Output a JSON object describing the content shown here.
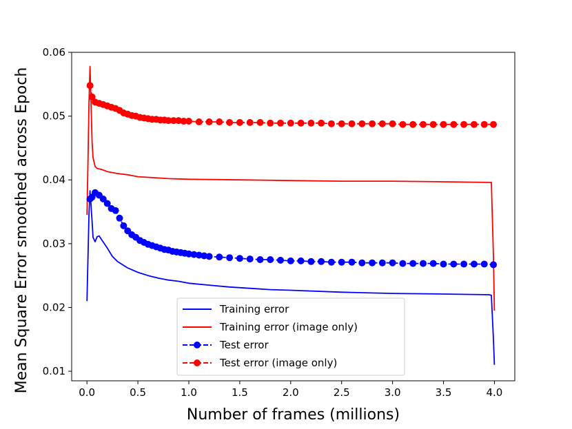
{
  "chart_data": {
    "type": "line",
    "xlabel": "Number of frames (millions)",
    "ylabel": "Mean Square Error smoothed across Epoch",
    "xlim": [
      -0.15,
      4.2
    ],
    "ylim": [
      0.0085,
      0.06
    ],
    "xticks": [
      0.0,
      0.5,
      1.0,
      1.5,
      2.0,
      2.5,
      3.0,
      3.5,
      4.0
    ],
    "xtick_labels": [
      "0.0",
      "0.5",
      "1.0",
      "1.5",
      "2.0",
      "2.5",
      "3.0",
      "3.5",
      "4.0"
    ],
    "yticks": [
      0.01,
      0.02,
      0.03,
      0.04,
      0.05,
      0.06
    ],
    "ytick_labels": [
      "0.01",
      "0.02",
      "0.03",
      "0.04",
      "0.05",
      "0.06"
    ],
    "grid": false,
    "legend_position": "bottom-center",
    "series": [
      {
        "name": "Training error",
        "color": "#0000ff",
        "style": "solid",
        "marker": "none",
        "points": [
          [
            0.0,
            0.021
          ],
          [
            0.01,
            0.028
          ],
          [
            0.02,
            0.0345
          ],
          [
            0.03,
            0.0383
          ],
          [
            0.04,
            0.036
          ],
          [
            0.05,
            0.0335
          ],
          [
            0.06,
            0.031
          ],
          [
            0.08,
            0.0303
          ],
          [
            0.1,
            0.0311
          ],
          [
            0.12,
            0.0312
          ],
          [
            0.15,
            0.0305
          ],
          [
            0.2,
            0.0293
          ],
          [
            0.25,
            0.028
          ],
          [
            0.3,
            0.0272
          ],
          [
            0.4,
            0.0262
          ],
          [
            0.5,
            0.0255
          ],
          [
            0.6,
            0.025
          ],
          [
            0.7,
            0.0246
          ],
          [
            0.8,
            0.0243
          ],
          [
            0.9,
            0.0241
          ],
          [
            1.0,
            0.0238
          ],
          [
            1.2,
            0.0235
          ],
          [
            1.4,
            0.0232
          ],
          [
            1.6,
            0.023
          ],
          [
            1.8,
            0.0228
          ],
          [
            2.0,
            0.0227
          ],
          [
            2.5,
            0.0224
          ],
          [
            3.0,
            0.0222
          ],
          [
            3.5,
            0.0221
          ],
          [
            3.95,
            0.022
          ],
          [
            3.97,
            0.0219
          ],
          [
            3.99,
            0.015
          ],
          [
            4.0,
            0.011
          ]
        ]
      },
      {
        "name": "Training error (image only)",
        "color": "#ff0000",
        "style": "solid",
        "marker": "none",
        "points": [
          [
            0.0,
            0.0345
          ],
          [
            0.01,
            0.043
          ],
          [
            0.02,
            0.052
          ],
          [
            0.03,
            0.0578
          ],
          [
            0.04,
            0.052
          ],
          [
            0.05,
            0.046
          ],
          [
            0.06,
            0.0435
          ],
          [
            0.08,
            0.0421
          ],
          [
            0.1,
            0.0418
          ],
          [
            0.15,
            0.0416
          ],
          [
            0.2,
            0.0413
          ],
          [
            0.3,
            0.041
          ],
          [
            0.4,
            0.0408
          ],
          [
            0.5,
            0.0405
          ],
          [
            0.6,
            0.0404
          ],
          [
            0.8,
            0.0402
          ],
          [
            1.0,
            0.0401
          ],
          [
            1.5,
            0.04
          ],
          [
            2.0,
            0.0399
          ],
          [
            2.5,
            0.0398
          ],
          [
            3.0,
            0.0398
          ],
          [
            3.5,
            0.0397
          ],
          [
            3.95,
            0.0396
          ],
          [
            3.97,
            0.0396
          ],
          [
            3.99,
            0.028
          ],
          [
            4.0,
            0.0195
          ]
        ]
      },
      {
        "name": "Test error",
        "color": "#0000ff",
        "style": "dashed",
        "marker": "circle",
        "points": [
          [
            0.03,
            0.037
          ],
          [
            0.05,
            0.0373
          ],
          [
            0.08,
            0.038
          ],
          [
            0.12,
            0.0376
          ],
          [
            0.16,
            0.037
          ],
          [
            0.2,
            0.0363
          ],
          [
            0.24,
            0.0355
          ],
          [
            0.28,
            0.0352
          ],
          [
            0.32,
            0.034
          ],
          [
            0.36,
            0.0328
          ],
          [
            0.4,
            0.032
          ],
          [
            0.44,
            0.0314
          ],
          [
            0.48,
            0.031
          ],
          [
            0.52,
            0.0305
          ],
          [
            0.56,
            0.0302
          ],
          [
            0.6,
            0.0299
          ],
          [
            0.64,
            0.0297
          ],
          [
            0.68,
            0.0295
          ],
          [
            0.72,
            0.0293
          ],
          [
            0.76,
            0.0291
          ],
          [
            0.8,
            0.029
          ],
          [
            0.84,
            0.0288
          ],
          [
            0.88,
            0.0287
          ],
          [
            0.92,
            0.0286
          ],
          [
            0.96,
            0.0285
          ],
          [
            1.0,
            0.0284
          ],
          [
            1.05,
            0.0283
          ],
          [
            1.1,
            0.0282
          ],
          [
            1.15,
            0.0281
          ],
          [
            1.2,
            0.028
          ],
          [
            1.3,
            0.0279
          ],
          [
            1.4,
            0.0278
          ],
          [
            1.5,
            0.0277
          ],
          [
            1.6,
            0.0276
          ],
          [
            1.7,
            0.0275
          ],
          [
            1.8,
            0.0275
          ],
          [
            1.9,
            0.0274
          ],
          [
            2.0,
            0.0273
          ],
          [
            2.1,
            0.0273
          ],
          [
            2.2,
            0.0272
          ],
          [
            2.3,
            0.0272
          ],
          [
            2.4,
            0.0271
          ],
          [
            2.5,
            0.0271
          ],
          [
            2.6,
            0.0271
          ],
          [
            2.7,
            0.027
          ],
          [
            2.8,
            0.027
          ],
          [
            2.9,
            0.027
          ],
          [
            3.0,
            0.027
          ],
          [
            3.1,
            0.0269
          ],
          [
            3.2,
            0.0269
          ],
          [
            3.3,
            0.0269
          ],
          [
            3.4,
            0.0269
          ],
          [
            3.5,
            0.0268
          ],
          [
            3.6,
            0.0268
          ],
          [
            3.7,
            0.0268
          ],
          [
            3.8,
            0.0268
          ],
          [
            3.9,
            0.0268
          ],
          [
            3.99,
            0.0267
          ]
        ]
      },
      {
        "name": "Test error (image only)",
        "color": "#ff0000",
        "style": "dashed",
        "marker": "circle",
        "points": [
          [
            0.03,
            0.0548
          ],
          [
            0.05,
            0.053
          ],
          [
            0.08,
            0.0522
          ],
          [
            0.12,
            0.052
          ],
          [
            0.16,
            0.0518
          ],
          [
            0.2,
            0.0516
          ],
          [
            0.24,
            0.0514
          ],
          [
            0.28,
            0.0512
          ],
          [
            0.32,
            0.0509
          ],
          [
            0.36,
            0.0505
          ],
          [
            0.4,
            0.0503
          ],
          [
            0.44,
            0.0501
          ],
          [
            0.48,
            0.05
          ],
          [
            0.52,
            0.0498
          ],
          [
            0.56,
            0.0497
          ],
          [
            0.6,
            0.0496
          ],
          [
            0.64,
            0.0495
          ],
          [
            0.68,
            0.0495
          ],
          [
            0.72,
            0.0494
          ],
          [
            0.76,
            0.0494
          ],
          [
            0.8,
            0.0493
          ],
          [
            0.85,
            0.0493
          ],
          [
            0.9,
            0.0493
          ],
          [
            0.95,
            0.0492
          ],
          [
            1.0,
            0.0492
          ],
          [
            1.1,
            0.0491
          ],
          [
            1.2,
            0.0491
          ],
          [
            1.3,
            0.0491
          ],
          [
            1.4,
            0.049
          ],
          [
            1.5,
            0.049
          ],
          [
            1.6,
            0.049
          ],
          [
            1.7,
            0.049
          ],
          [
            1.8,
            0.0489
          ],
          [
            1.9,
            0.0489
          ],
          [
            2.0,
            0.0489
          ],
          [
            2.1,
            0.0489
          ],
          [
            2.2,
            0.0489
          ],
          [
            2.3,
            0.0489
          ],
          [
            2.4,
            0.0488
          ],
          [
            2.5,
            0.0488
          ],
          [
            2.6,
            0.0488
          ],
          [
            2.7,
            0.0488
          ],
          [
            2.8,
            0.0488
          ],
          [
            2.9,
            0.0488
          ],
          [
            3.0,
            0.0488
          ],
          [
            3.1,
            0.0487
          ],
          [
            3.2,
            0.0487
          ],
          [
            3.3,
            0.0487
          ],
          [
            3.4,
            0.0487
          ],
          [
            3.5,
            0.0487
          ],
          [
            3.6,
            0.0487
          ],
          [
            3.7,
            0.0487
          ],
          [
            3.8,
            0.0487
          ],
          [
            3.9,
            0.0487
          ],
          [
            3.99,
            0.0487
          ]
        ]
      }
    ]
  }
}
